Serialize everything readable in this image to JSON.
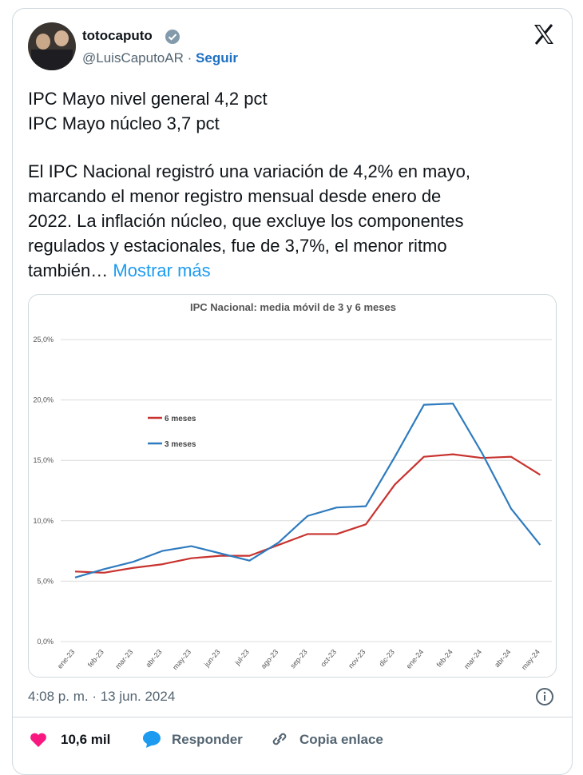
{
  "user": {
    "name": "totocaputo",
    "handle": "@LuisCaputoAR",
    "separator": "·",
    "follow": "Seguir"
  },
  "tweet": {
    "lines": [
      "IPC Mayo nivel general 4,2 pct",
      "IPC Mayo núcleo 3,7 pct"
    ],
    "paragraph": [
      "El IPC Nacional registró una variación de 4,2% en mayo,",
      "marcando el menor registro mensual desde enero de",
      "2022. La inflación núcleo, que excluye los componentes",
      "regulados y estacionales, fue de 3,7%, el menor ritmo",
      "también…"
    ],
    "more": "Mostrar más",
    "timestamp": "4:08 p. m. · 13 jun. 2024"
  },
  "actions": {
    "likes": "10,6 mil",
    "reply": "Responder",
    "copy": "Copia enlace"
  },
  "chart_data": {
    "type": "line",
    "title": "IPC Nacional: media móvil de 3 y 6 meses",
    "categories": [
      "ene-23",
      "feb-23",
      "mar-23",
      "abr-23",
      "may-23",
      "jun-23",
      "jul-23",
      "ago-23",
      "sep-23",
      "oct-23",
      "nov-23",
      "dic-23",
      "ene-24",
      "feb-24",
      "mar-24",
      "abr-24",
      "may-24"
    ],
    "series": [
      {
        "name": "6 meses",
        "color": "#c8332f",
        "values": [
          5.8,
          5.7,
          6.1,
          6.4,
          6.9,
          7.1,
          7.1,
          8.0,
          8.9,
          8.9,
          9.7,
          13.0,
          15.3,
          15.5,
          15.2,
          15.3,
          13.8
        ]
      },
      {
        "name": "3 meses",
        "color": "#2e7bbf",
        "values": [
          5.3,
          6.0,
          6.6,
          7.5,
          7.9,
          7.3,
          6.7,
          8.2,
          10.4,
          11.1,
          11.2,
          15.3,
          19.6,
          19.7,
          15.6,
          11.0,
          8.0
        ]
      }
    ],
    "ylim": [
      0,
      25
    ],
    "yticks": [
      {
        "value": 0,
        "label": "0,0%"
      },
      {
        "value": 5,
        "label": "5,0%"
      },
      {
        "value": 10,
        "label": "10,0%"
      },
      {
        "value": 15,
        "label": "15,0%"
      },
      {
        "value": 20,
        "label": "20,0%"
      },
      {
        "value": 25,
        "label": "25,0%"
      }
    ],
    "grid": true
  }
}
